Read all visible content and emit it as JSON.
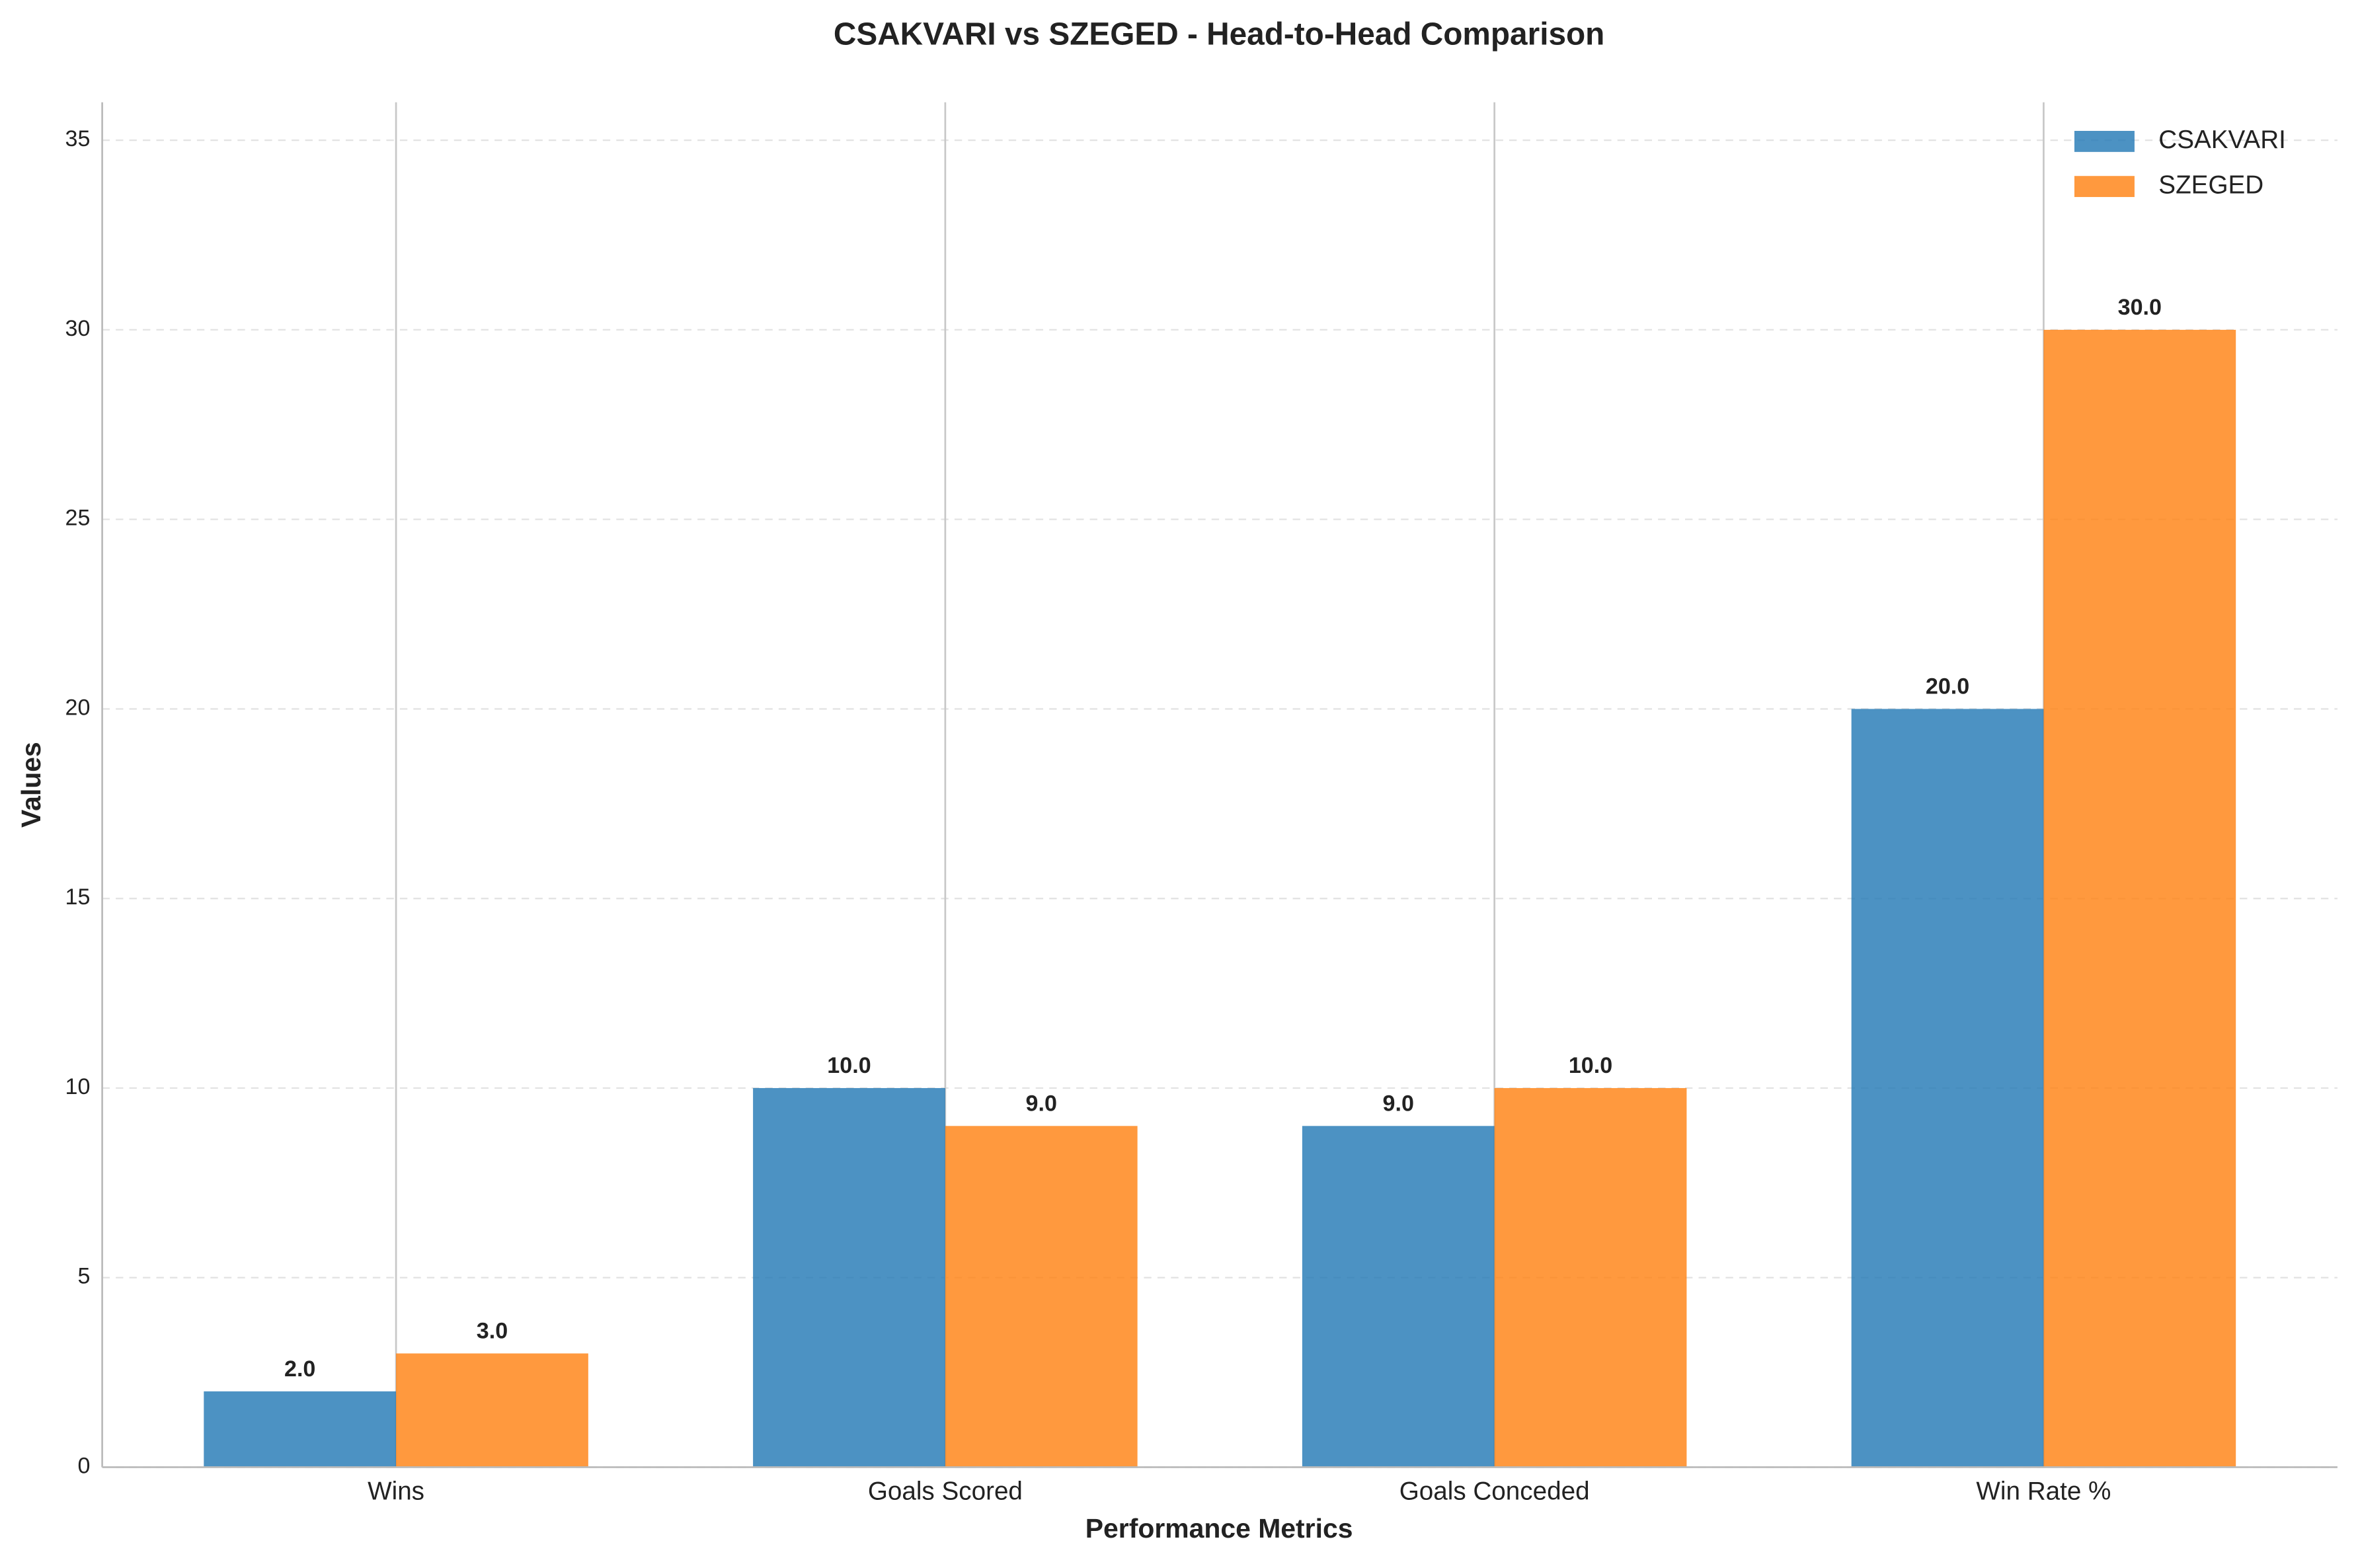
{
  "chart_data": {
    "type": "bar",
    "title": "CSAKVARI vs SZEGED - Head-to-Head Comparison",
    "xlabel": "Performance Metrics",
    "ylabel": "Values",
    "categories": [
      "Wins",
      "Goals Scored",
      "Goals Conceded",
      "Win Rate %"
    ],
    "series": [
      {
        "name": "CSAKVARI",
        "color": "#1f77b4",
        "values": [
          2,
          10,
          9,
          20
        ],
        "value_labels": [
          "2.0",
          "10.0",
          "9.0",
          "20.0"
        ]
      },
      {
        "name": "SZEGED",
        "color": "#ff7f0e",
        "values": [
          3,
          9,
          10,
          30
        ],
        "value_labels": [
          "3.0",
          "9.0",
          "10.0",
          "30.0"
        ]
      }
    ],
    "ylim": [
      0,
      36
    ],
    "yticks": [
      0,
      5,
      10,
      15,
      20,
      25,
      30,
      35
    ],
    "grid": true,
    "legend": "upper right"
  }
}
